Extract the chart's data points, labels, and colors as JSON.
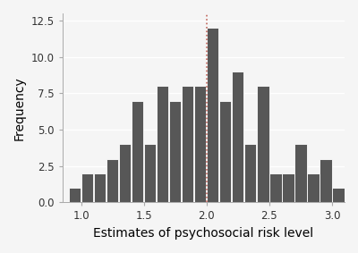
{
  "bin_starts": [
    0.9,
    1.0,
    1.1,
    1.2,
    1.3,
    1.4,
    1.5,
    1.6,
    1.7,
    1.8,
    1.9,
    2.0,
    2.1,
    2.2,
    2.3,
    2.4,
    2.5,
    2.6,
    2.7,
    2.8,
    2.9,
    3.0
  ],
  "counts": [
    1,
    2,
    2,
    3,
    4,
    7,
    4,
    8,
    7,
    8,
    8,
    12,
    7,
    9,
    4,
    8,
    2,
    2,
    4,
    2,
    3,
    1
  ],
  "vline_x": 2.0,
  "xlim": [
    0.85,
    3.1
  ],
  "ylim": [
    0,
    13
  ],
  "xticks": [
    1.0,
    1.5,
    2.0,
    2.5,
    3.0
  ],
  "yticks": [
    0.0,
    2.5,
    5.0,
    7.5,
    10.0,
    12.5
  ],
  "xlabel": "Estimates of psychosocial risk level",
  "ylabel": "Frequency",
  "bar_color": "#575757",
  "bar_edge_color": "#ffffff",
  "vline_color": "#c0645a",
  "background_color": "#f5f5f5",
  "grid_color": "#ffffff",
  "xlabel_fontsize": 10,
  "ylabel_fontsize": 10,
  "tick_fontsize": 8.5,
  "bin_width": 0.1
}
